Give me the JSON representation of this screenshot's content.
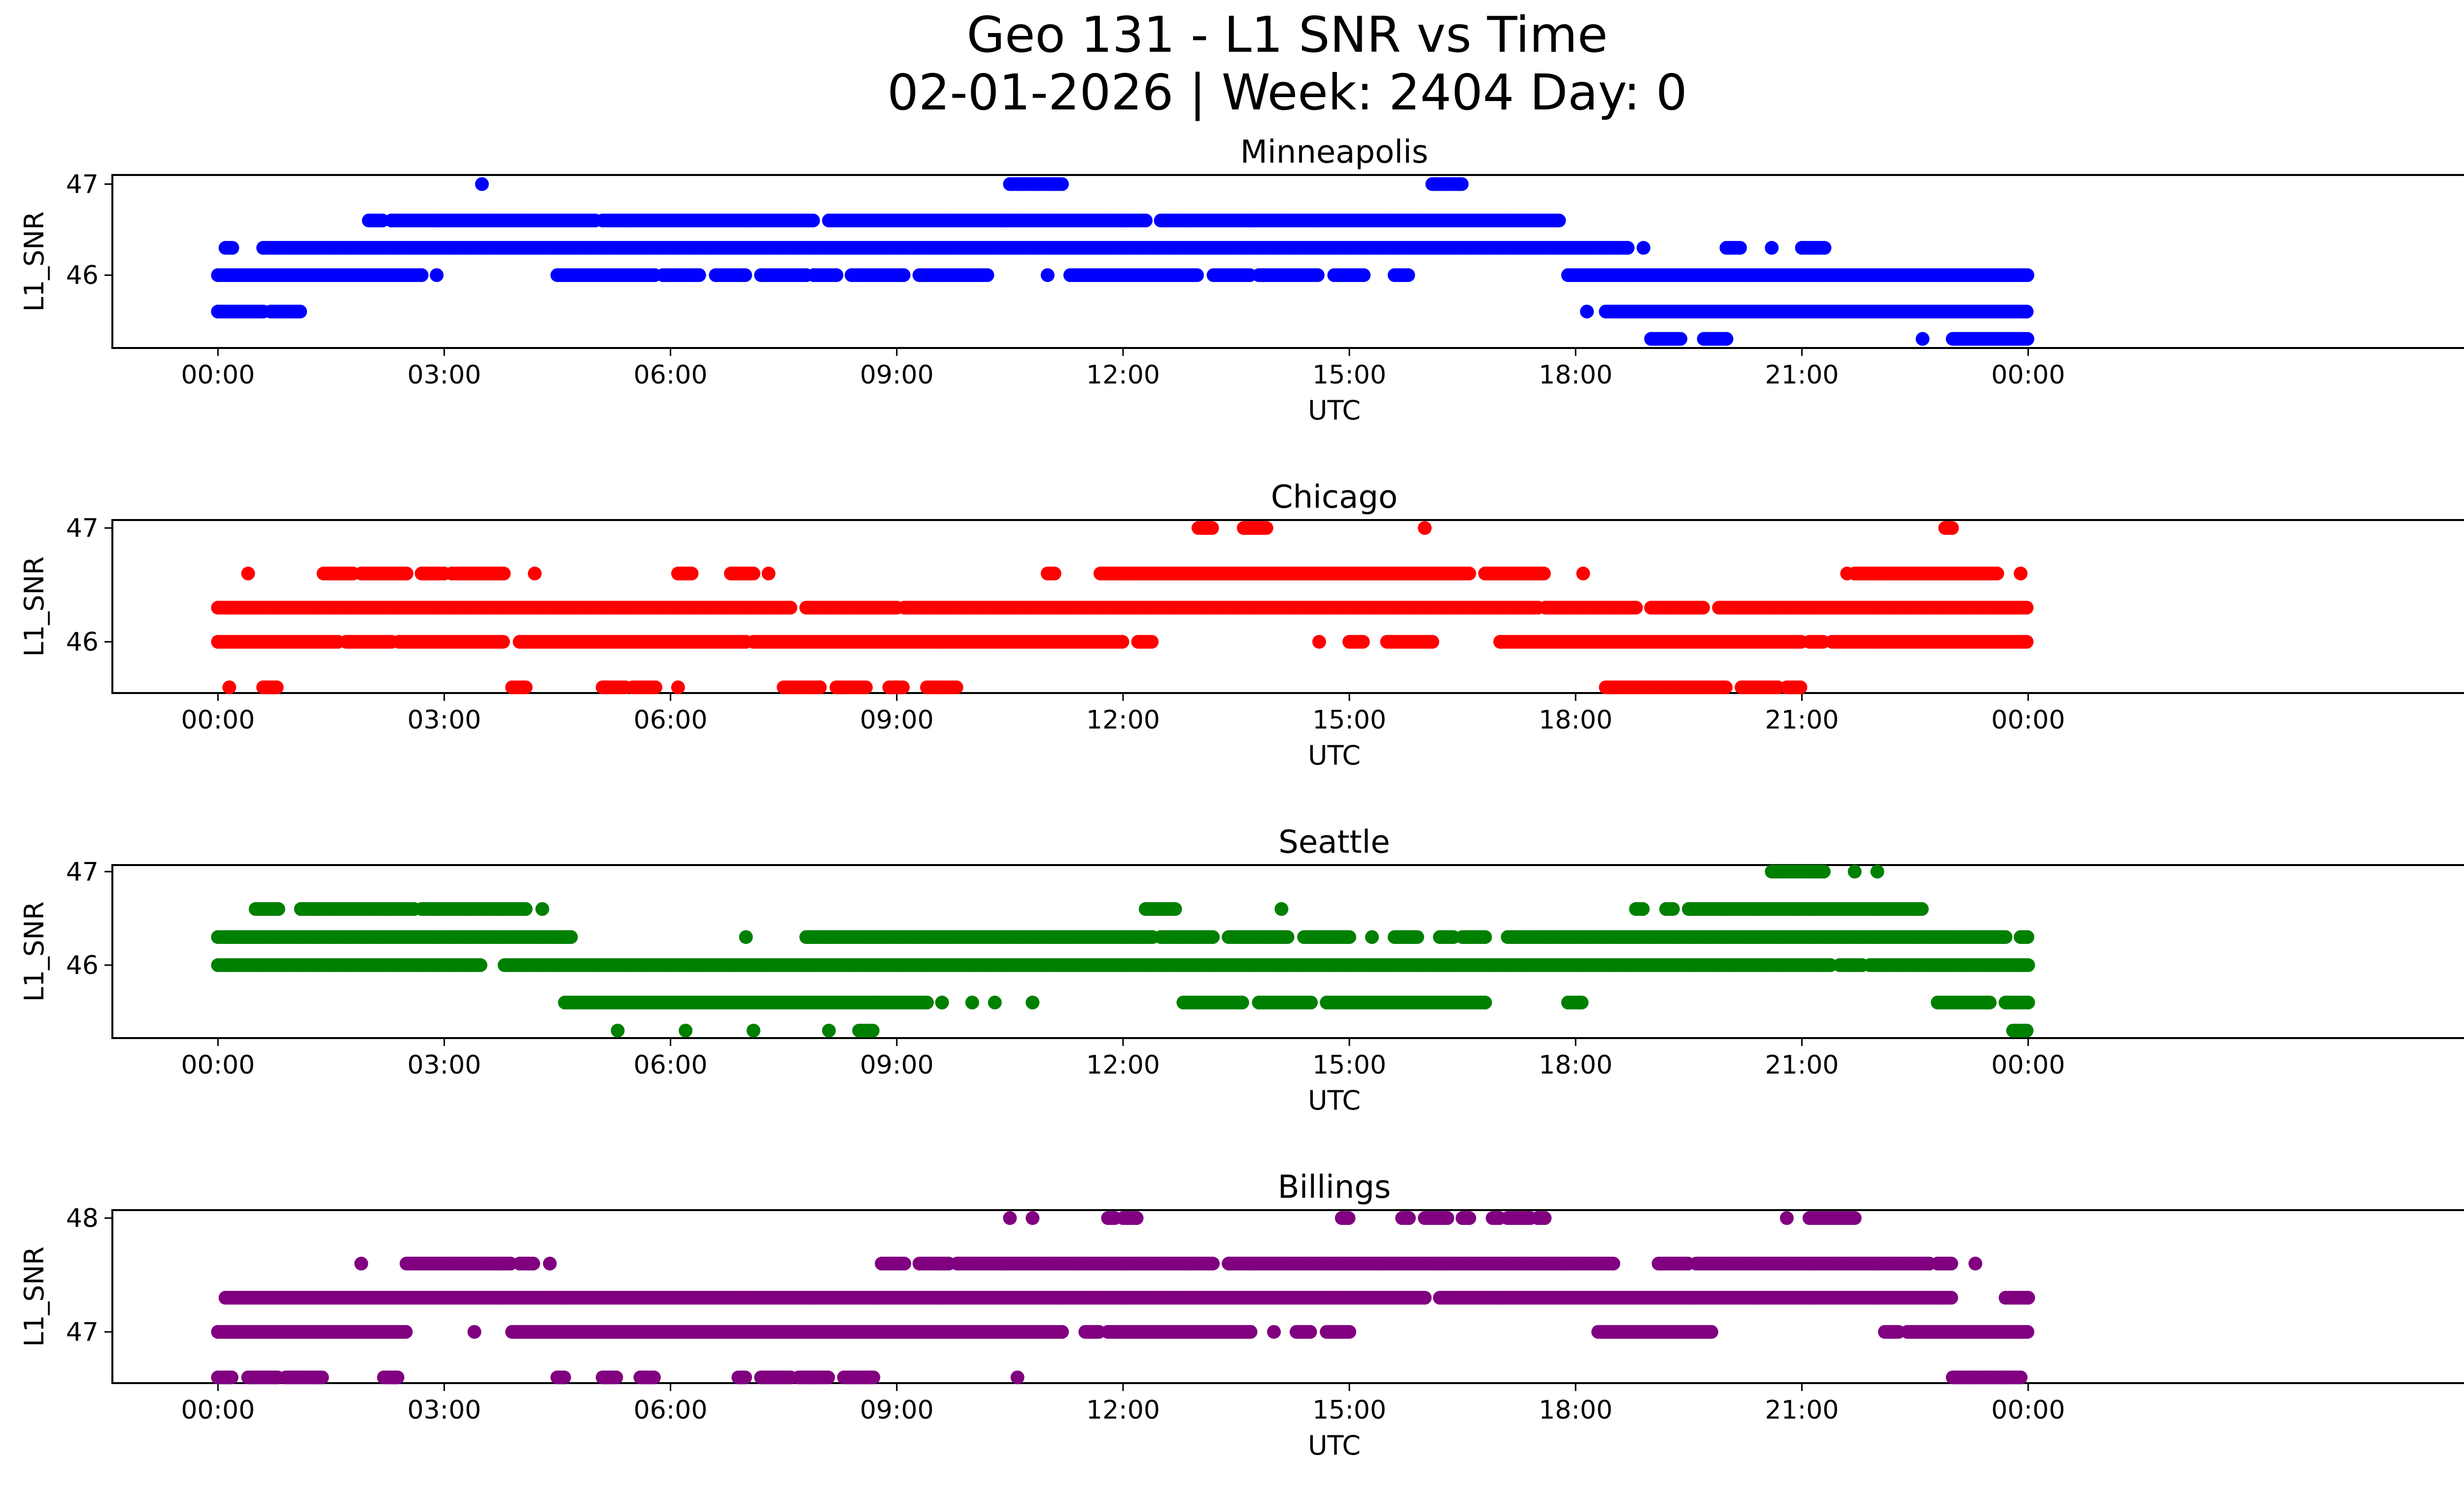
{
  "figure": {
    "title_line1": "Geo 131 - L1 SNR vs Time",
    "title_line2": "02-01-2026 | Week: 2404 Day: 0"
  },
  "chart_data": [
    {
      "type": "scatter",
      "title": "Minneapolis",
      "xlabel": "UTC",
      "ylabel": "L1_SNR",
      "color": "#0000ff",
      "xlim": [
        -1.4,
        31
      ],
      "ylim": [
        45.2,
        47.1
      ],
      "xticks": [
        0,
        3,
        6,
        9,
        12,
        15,
        18,
        21,
        24
      ],
      "xtick_labels": [
        "00:00",
        "03:00",
        "06:00",
        "09:00",
        "12:00",
        "15:00",
        "18:00",
        "21:00",
        "00:00"
      ],
      "yticks": [
        46,
        47
      ],
      "ytick_labels": [
        "46",
        "47"
      ],
      "series": [
        {
          "level": 45.6,
          "ranges": [
            [
              0,
              0.6
            ],
            [
              0.7,
              1.1
            ],
            [
              18.15,
              18.15
            ],
            [
              18.4,
              24
            ]
          ]
        },
        {
          "level": 46.0,
          "ranges": [
            [
              0,
              2.7
            ],
            [
              2.9,
              2.9
            ],
            [
              4.5,
              5.8
            ],
            [
              5.9,
              6.4
            ],
            [
              6.6,
              7.0
            ],
            [
              7.2,
              7.8
            ],
            [
              7.9,
              8.2
            ],
            [
              8.4,
              9.1
            ],
            [
              9.3,
              10.2
            ],
            [
              11.0,
              11.0
            ],
            [
              11.3,
              13.0
            ],
            [
              13.2,
              13.7
            ],
            [
              13.8,
              14.6
            ],
            [
              14.8,
              15.2
            ],
            [
              15.6,
              15.8
            ],
            [
              17.9,
              24
            ]
          ]
        },
        {
          "level": 46.3,
          "ranges": [
            [
              0.1,
              0.2
            ],
            [
              0.6,
              18.7
            ],
            [
              18.9,
              18.9
            ],
            [
              20.0,
              20.2
            ],
            [
              20.6,
              20.6
            ],
            [
              21.0,
              21.3
            ]
          ]
        },
        {
          "level": 46.6,
          "ranges": [
            [
              2.0,
              2.2
            ],
            [
              2.3,
              5.0
            ],
            [
              5.1,
              7.9
            ],
            [
              8.1,
              12.3
            ],
            [
              12.5,
              17.8
            ]
          ]
        },
        {
          "level": 47.0,
          "ranges": [
            [
              3.5,
              3.5
            ],
            [
              10.5,
              11.2
            ],
            [
              16.1,
              16.5
            ]
          ]
        },
        {
          "level": 45.3,
          "ranges": [
            [
              19.0,
              19.4
            ],
            [
              19.7,
              20.0
            ],
            [
              22.6,
              22.6
            ],
            [
              23.0,
              24
            ]
          ]
        }
      ]
    },
    {
      "type": "scatter",
      "title": "Chicago",
      "xlabel": "UTC",
      "ylabel": "L1_SNR",
      "color": "#ff0000",
      "xlim": [
        -1.4,
        31
      ],
      "ylim": [
        45.55,
        47.07
      ],
      "xticks": [
        0,
        3,
        6,
        9,
        12,
        15,
        18,
        21,
        24
      ],
      "xtick_labels": [
        "00:00",
        "03:00",
        "06:00",
        "09:00",
        "12:00",
        "15:00",
        "18:00",
        "21:00",
        "00:00"
      ],
      "yticks": [
        46,
        47
      ],
      "ytick_labels": [
        "46",
        "47"
      ],
      "series": [
        {
          "level": 46.0,
          "ranges": [
            [
              0,
              1.6
            ],
            [
              1.7,
              2.3
            ],
            [
              2.4,
              3.8
            ],
            [
              4.0,
              7.0
            ],
            [
              7.1,
              12.0
            ],
            [
              12.2,
              12.4
            ],
            [
              14.6,
              14.6
            ],
            [
              15.0,
              15.2
            ],
            [
              15.5,
              16.1
            ],
            [
              17.0,
              21.0
            ],
            [
              21.1,
              21.3
            ],
            [
              21.4,
              24
            ]
          ]
        },
        {
          "level": 46.3,
          "ranges": [
            [
              0,
              7.6
            ],
            [
              7.8,
              9.0
            ],
            [
              9.1,
              17.5
            ],
            [
              17.6,
              18.8
            ],
            [
              19.0,
              19.7
            ],
            [
              19.9,
              24
            ]
          ]
        },
        {
          "level": 46.6,
          "ranges": [
            [
              0.4,
              0.4
            ],
            [
              1.4,
              1.8
            ],
            [
              1.9,
              2.5
            ],
            [
              2.7,
              3.0
            ],
            [
              3.1,
              3.8
            ],
            [
              4.2,
              4.2
            ],
            [
              6.1,
              6.3
            ],
            [
              6.8,
              7.1
            ],
            [
              7.3,
              7.3
            ],
            [
              11.0,
              11.1
            ],
            [
              11.7,
              16.6
            ],
            [
              16.8,
              17.6
            ],
            [
              18.1,
              18.1
            ],
            [
              21.6,
              21.6
            ],
            [
              21.7,
              23.6
            ],
            [
              23.9,
              23.9
            ]
          ]
        },
        {
          "level": 47.0,
          "ranges": [
            [
              13.0,
              13.2
            ],
            [
              13.6,
              13.9
            ],
            [
              16.0,
              16.0
            ],
            [
              22.9,
              23.0
            ]
          ]
        },
        {
          "level": 45.6,
          "ranges": [
            [
              0.15,
              0.15
            ],
            [
              0.6,
              0.8
            ],
            [
              3.9,
              4.1
            ],
            [
              5.1,
              5.4
            ],
            [
              5.5,
              5.8
            ],
            [
              6.1,
              6.1
            ],
            [
              7.5,
              8.0
            ],
            [
              8.2,
              8.6
            ],
            [
              8.9,
              9.1
            ],
            [
              9.4,
              9.8
            ],
            [
              18.4,
              20.0
            ],
            [
              20.2,
              20.7
            ],
            [
              20.8,
              21.0
            ]
          ]
        }
      ]
    },
    {
      "type": "scatter",
      "title": "Seattle",
      "xlabel": "UTC",
      "ylabel": "L1_SNR",
      "color": "#008000",
      "xlim": [
        -1.4,
        31
      ],
      "ylim": [
        45.22,
        47.07
      ],
      "xticks": [
        0,
        3,
        6,
        9,
        12,
        15,
        18,
        21,
        24
      ],
      "xtick_labels": [
        "00:00",
        "03:00",
        "06:00",
        "09:00",
        "12:00",
        "15:00",
        "18:00",
        "21:00",
        "00:00"
      ],
      "yticks": [
        46,
        47
      ],
      "ytick_labels": [
        "46",
        "47"
      ],
      "series": [
        {
          "level": 46.3,
          "ranges": [
            [
              0,
              4.7
            ],
            [
              7.0,
              7.0
            ],
            [
              7.8,
              12.4
            ],
            [
              12.5,
              13.2
            ],
            [
              13.4,
              14.2
            ],
            [
              14.4,
              15.0
            ],
            [
              15.3,
              15.3
            ],
            [
              15.6,
              15.9
            ],
            [
              16.2,
              16.4
            ],
            [
              16.5,
              16.8
            ],
            [
              17.1,
              23.7
            ],
            [
              23.9,
              24
            ]
          ]
        },
        {
          "level": 46.6,
          "ranges": [
            [
              0.5,
              0.8
            ],
            [
              1.1,
              2.6
            ],
            [
              2.7,
              4.1
            ],
            [
              4.3,
              4.3
            ],
            [
              12.3,
              12.7
            ],
            [
              14.1,
              14.1
            ],
            [
              18.8,
              18.9
            ],
            [
              19.2,
              19.3
            ],
            [
              19.5,
              22.6
            ]
          ]
        },
        {
          "level": 46.0,
          "ranges": [
            [
              0,
              3.5
            ],
            [
              3.8,
              21.4
            ],
            [
              21.5,
              21.8
            ],
            [
              21.9,
              24
            ]
          ]
        },
        {
          "level": 45.6,
          "ranges": [
            [
              4.6,
              9.4
            ],
            [
              9.6,
              9.6
            ],
            [
              10.0,
              10.0
            ],
            [
              10.3,
              10.3
            ],
            [
              10.8,
              10.8
            ],
            [
              12.8,
              13.6
            ],
            [
              13.8,
              14.5
            ],
            [
              14.7,
              16.8
            ],
            [
              17.9,
              18.1
            ],
            [
              22.8,
              23.5
            ],
            [
              23.7,
              24
            ]
          ]
        },
        {
          "level": 45.3,
          "ranges": [
            [
              5.3,
              5.3
            ],
            [
              6.2,
              6.2
            ],
            [
              7.1,
              7.1
            ],
            [
              8.1,
              8.1
            ],
            [
              8.5,
              8.7
            ],
            [
              23.8,
              24
            ]
          ]
        },
        {
          "level": 47.0,
          "ranges": [
            [
              20.6,
              21.3
            ],
            [
              21.7,
              21.7
            ],
            [
              22.0,
              22.0
            ]
          ]
        }
      ]
    },
    {
      "type": "scatter",
      "title": "Billings",
      "xlabel": "UTC",
      "ylabel": "L1_SNR",
      "color": "#800080",
      "xlim": [
        -1.4,
        31
      ],
      "ylim": [
        46.55,
        48.07
      ],
      "xticks": [
        0,
        3,
        6,
        9,
        12,
        15,
        18,
        21,
        24
      ],
      "xtick_labels": [
        "00:00",
        "03:00",
        "06:00",
        "09:00",
        "12:00",
        "15:00",
        "18:00",
        "21:00",
        "00:00"
      ],
      "yticks": [
        47,
        48
      ],
      "ytick_labels": [
        "47",
        "48"
      ],
      "series": [
        {
          "level": 46.6,
          "ranges": [
            [
              0,
              0.2
            ],
            [
              0.4,
              0.8
            ],
            [
              0.9,
              1.4
            ],
            [
              2.2,
              2.4
            ],
            [
              4.5,
              4.6
            ],
            [
              5.1,
              5.3
            ],
            [
              5.6,
              5.8
            ],
            [
              6.9,
              7.0
            ],
            [
              7.2,
              7.6
            ],
            [
              7.7,
              8.1
            ],
            [
              8.3,
              8.7
            ],
            [
              10.6,
              10.6
            ],
            [
              23.0,
              23.9
            ]
          ]
        },
        {
          "level": 47.0,
          "ranges": [
            [
              0,
              2.5
            ],
            [
              3.4,
              3.4
            ],
            [
              3.9,
              11.2
            ],
            [
              11.5,
              11.7
            ],
            [
              11.8,
              13.7
            ],
            [
              14.0,
              14.0
            ],
            [
              14.3,
              14.5
            ],
            [
              14.7,
              15.0
            ],
            [
              18.3,
              19.8
            ],
            [
              22.1,
              22.3
            ],
            [
              22.4,
              24
            ]
          ]
        },
        {
          "level": 47.3,
          "ranges": [
            [
              0.1,
              16.0
            ],
            [
              16.2,
              23.0
            ],
            [
              23.7,
              24
            ]
          ]
        },
        {
          "level": 47.6,
          "ranges": [
            [
              1.9,
              1.9
            ],
            [
              2.5,
              3.9
            ],
            [
              4.0,
              4.2
            ],
            [
              4.4,
              4.4
            ],
            [
              8.8,
              9.1
            ],
            [
              9.3,
              9.7
            ],
            [
              9.8,
              13.2
            ],
            [
              13.4,
              18.5
            ],
            [
              19.1,
              19.5
            ],
            [
              19.6,
              22.7
            ],
            [
              22.8,
              23.0
            ],
            [
              23.3,
              23.3
            ]
          ]
        },
        {
          "level": 48.0,
          "ranges": [
            [
              10.5,
              10.5
            ],
            [
              10.8,
              10.8
            ],
            [
              11.8,
              11.9
            ],
            [
              12.0,
              12.2
            ],
            [
              14.9,
              15.0
            ],
            [
              15.7,
              15.8
            ],
            [
              16.0,
              16.3
            ],
            [
              16.5,
              16.6
            ],
            [
              16.9,
              17.0
            ],
            [
              17.1,
              17.4
            ],
            [
              17.5,
              17.6
            ],
            [
              20.8,
              20.8
            ],
            [
              21.1,
              21.7
            ]
          ]
        }
      ]
    }
  ]
}
